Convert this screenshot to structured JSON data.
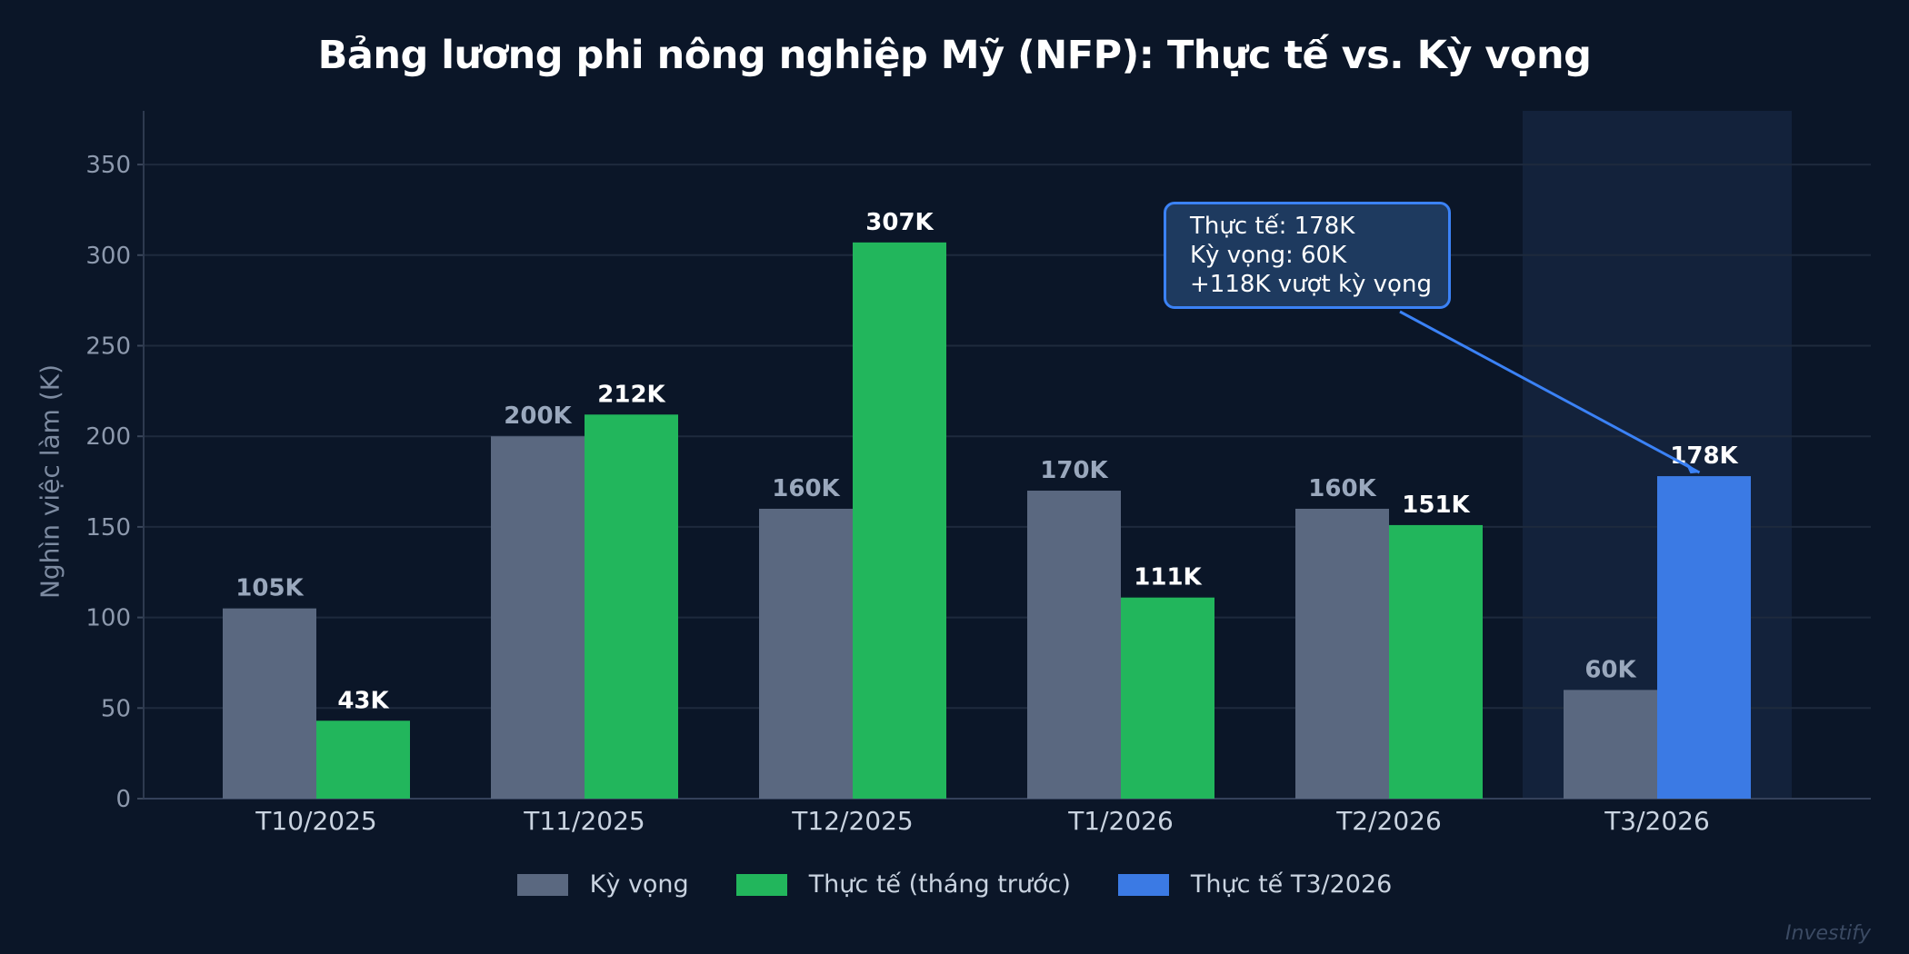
{
  "title": "Bảng lương phi nông nghiệp Mỹ (NFP): Thực tế vs. Kỳ vọng",
  "y_axis_label": "Nghìn việc làm (K)",
  "legend": [
    {
      "label": "Kỳ vọng",
      "color": "#5a6880"
    },
    {
      "label": "Thực tế (tháng trước)",
      "color": "#22b65c"
    },
    {
      "label": "Thực tế T3/2026",
      "color": "#3b7ae4"
    }
  ],
  "callout": {
    "line1": "Thực tế: 178K",
    "line2": "Kỳ vọng: 60K",
    "line3": "+118K vượt kỳ vọng"
  },
  "watermark": "Investify",
  "colors": {
    "background": "#0b1628",
    "grid": "#1e2a3d",
    "expected": "#5a6880",
    "actual": "#22b65c",
    "highlight": "#3b7ae4",
    "highlight_band": "#13223b",
    "expected_label": "#9aa8bd",
    "actual_label": "#ffffff"
  },
  "chart_data": {
    "type": "bar",
    "title": "Bảng lương phi nông nghiệp Mỹ (NFP): Thực tế vs. Kỳ vọng",
    "xlabel": "",
    "ylabel": "Nghìn việc làm (K)",
    "categories": [
      "T10/2025",
      "T11/2025",
      "T12/2025",
      "T1/2026",
      "T2/2026",
      "T3/2026"
    ],
    "series": [
      {
        "name": "Kỳ vọng",
        "values": [
          105,
          200,
          160,
          170,
          160,
          60
        ],
        "labels": [
          "105K",
          "200K",
          "160K",
          "170K",
          "160K",
          "60K"
        ]
      },
      {
        "name": "Thực tế",
        "values": [
          43,
          212,
          307,
          111,
          151,
          178
        ],
        "labels": [
          "43K",
          "212K",
          "307K",
          "111K",
          "151K",
          "178K"
        ]
      }
    ],
    "highlight_category": "T3/2026",
    "yticks": [
      0,
      50,
      100,
      150,
      200,
      250,
      300,
      350
    ],
    "ylim": [
      0,
      380
    ],
    "grid": true,
    "legend_position": "bottom",
    "annotation": "Thực tế: 178K / Kỳ vọng: 60K / +118K vượt kỳ vọng"
  }
}
